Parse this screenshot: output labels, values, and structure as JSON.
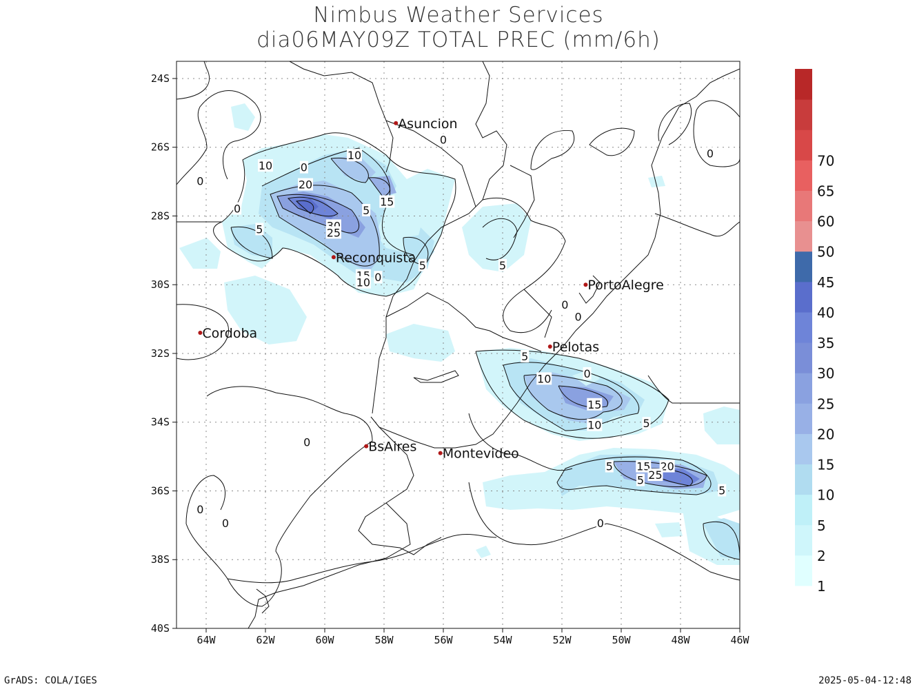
{
  "title": {
    "line1": "Nimbus Weather Services",
    "line2": "dia06MAY09Z TOTAL PREC (mm/6h)"
  },
  "map": {
    "lon_range": [
      -65,
      -46
    ],
    "lat_range": [
      -40,
      -23.5
    ],
    "lat_ticks": [
      "24S",
      "26S",
      "28S",
      "30S",
      "32S",
      "34S",
      "36S",
      "38S",
      "40S"
    ],
    "lon_ticks": [
      "64W",
      "62W",
      "60W",
      "58W",
      "56W",
      "54W",
      "52W",
      "50W",
      "48W",
      "46W"
    ],
    "cities": [
      {
        "name": "Asuncion",
        "lon": -57.6,
        "lat": -25.3
      },
      {
        "name": "Reconquista",
        "lon": -59.7,
        "lat": -29.2
      },
      {
        "name": "PortoAlegre",
        "lon": -51.2,
        "lat": -30.0
      },
      {
        "name": "Cordoba",
        "lon": -64.2,
        "lat": -31.4
      },
      {
        "name": "Pelotas",
        "lon": -52.4,
        "lat": -31.8
      },
      {
        "name": "BsAires",
        "lon": -58.6,
        "lat": -34.7
      },
      {
        "name": "Montevideo",
        "lon": -56.1,
        "lat": -34.9
      }
    ],
    "contour_labels": [
      {
        "text": "10",
        "lon": -59.0,
        "lat": -26.25
      },
      {
        "text": "10",
        "lon": -62.0,
        "lat": -26.55
      },
      {
        "text": "0",
        "lon": -60.7,
        "lat": -26.6
      },
      {
        "text": "0",
        "lon": -64.2,
        "lat": -27.0
      },
      {
        "text": "0",
        "lon": -56.0,
        "lat": -25.8
      },
      {
        "text": "0",
        "lon": -47.0,
        "lat": -26.2
      },
      {
        "text": "20",
        "lon": -60.65,
        "lat": -27.1
      },
      {
        "text": "0",
        "lon": -62.95,
        "lat": -27.8
      },
      {
        "text": "15",
        "lon": -57.9,
        "lat": -27.6
      },
      {
        "text": "5",
        "lon": -58.6,
        "lat": -27.85
      },
      {
        "text": "5",
        "lon": -62.2,
        "lat": -28.4
      },
      {
        "text": "30",
        "lon": -59.7,
        "lat": -28.3
      },
      {
        "text": "25",
        "lon": -59.7,
        "lat": -28.5
      },
      {
        "text": "5",
        "lon": -56.7,
        "lat": -29.45
      },
      {
        "text": "5",
        "lon": -54.0,
        "lat": -29.45
      },
      {
        "text": "15",
        "lon": -58.7,
        "lat": -29.75
      },
      {
        "text": "10",
        "lon": -58.7,
        "lat": -29.95
      },
      {
        "text": "0",
        "lon": -58.2,
        "lat": -29.8
      },
      {
        "text": "0",
        "lon": -51.9,
        "lat": -30.6
      },
      {
        "text": "0",
        "lon": -51.45,
        "lat": -30.95
      },
      {
        "text": "5",
        "lon": -53.25,
        "lat": -32.1
      },
      {
        "text": "10",
        "lon": -52.6,
        "lat": -32.75
      },
      {
        "text": "0",
        "lon": -51.15,
        "lat": -32.6
      },
      {
        "text": "15",
        "lon": -50.9,
        "lat": -33.5
      },
      {
        "text": "10",
        "lon": -50.9,
        "lat": -34.1
      },
      {
        "text": "5",
        "lon": -49.15,
        "lat": -34.05
      },
      {
        "text": "0",
        "lon": -60.6,
        "lat": -34.6
      },
      {
        "text": "5",
        "lon": -50.4,
        "lat": -35.3
      },
      {
        "text": "15",
        "lon": -49.25,
        "lat": -35.3
      },
      {
        "text": "20",
        "lon": -48.45,
        "lat": -35.3
      },
      {
        "text": "25",
        "lon": -48.85,
        "lat": -35.55
      },
      {
        "text": "5",
        "lon": -49.35,
        "lat": -35.7
      },
      {
        "text": "5",
        "lon": -46.6,
        "lat": -36.0
      },
      {
        "text": "0",
        "lon": -64.2,
        "lat": -36.55
      },
      {
        "text": "0",
        "lon": -63.35,
        "lat": -36.95
      },
      {
        "text": "0",
        "lon": -50.7,
        "lat": -36.95
      }
    ]
  },
  "colorbar": {
    "levels": [
      "1",
      "2",
      "5",
      "10",
      "15",
      "20",
      "25",
      "30",
      "35",
      "40",
      "45",
      "50",
      "60",
      "65",
      "70"
    ],
    "colors": [
      "#e0ffff",
      "#cff6fb",
      "#bff0f8",
      "#b0dcf0",
      "#a9c8ee",
      "#98b0e6",
      "#8aa1e0",
      "#7a8ed8",
      "#6e84d8",
      "#5a6ecc",
      "#3e6aaa",
      "#e89090",
      "#e87878",
      "#e86060",
      "#d84848",
      "#c83c3c",
      "#b82828"
    ]
  },
  "footer": {
    "left": "GrADS: COLA/IGES",
    "right": "2025-05-04-12:48"
  }
}
